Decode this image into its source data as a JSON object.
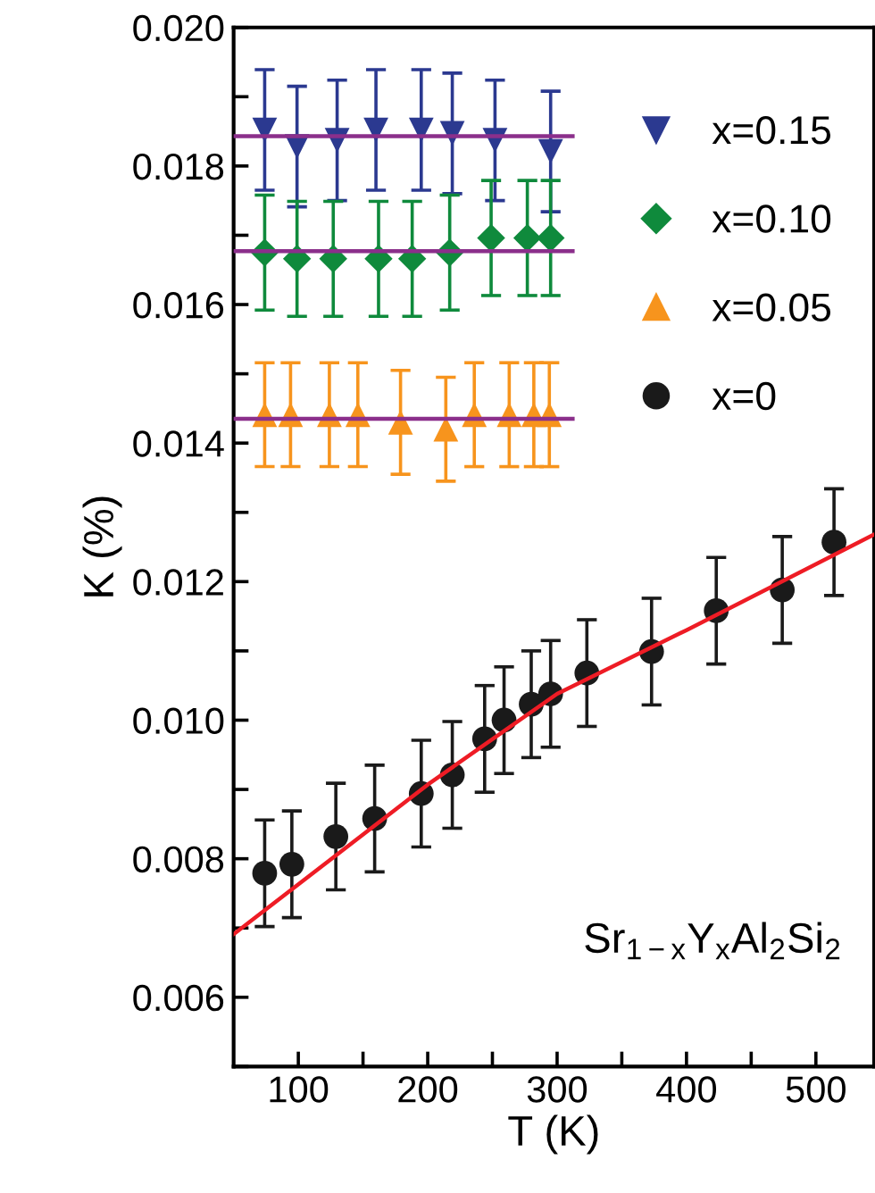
{
  "chart_data": {
    "type": "scatter",
    "xlabel": "T (K)",
    "ylabel": "K (%)",
    "xlim": [
      50,
      545
    ],
    "ylim": [
      0.005,
      0.02
    ],
    "xticks": [
      100,
      {
        "value": 150,
        "label": null
      },
      200,
      {
        "value": 250,
        "label": null
      },
      300,
      {
        "value": 350,
        "label": null
      },
      400,
      {
        "value": 450,
        "label": null
      },
      500
    ],
    "yticks": [
      {
        "value": 0.005,
        "label": null
      },
      0.006,
      {
        "value": 0.007,
        "label": null
      },
      0.008,
      {
        "value": 0.009,
        "label": null
      },
      {
        "value": 0.01,
        "label": "0.010"
      },
      {
        "value": 0.011,
        "label": null
      },
      0.012,
      {
        "value": 0.013,
        "label": null
      },
      0.014,
      {
        "value": 0.015,
        "label": null
      },
      0.016,
      {
        "value": 0.017,
        "label": null
      },
      0.018,
      {
        "value": 0.019,
        "label": null
      },
      {
        "value": 0.02,
        "label": "0.020"
      }
    ],
    "grid": false,
    "legend": "top right",
    "annotations": [
      "Sr$_{1−x}$Y$_{x}$Al$_{2}$Si$_{2}$"
    ],
    "series": [
      {
        "name": "x=0.15",
        "marker": "triangle_down",
        "color": "#2b3990",
        "x": [
          74,
          99,
          130,
          160,
          195,
          219,
          252,
          295
        ],
        "values": [
          0.01852,
          0.01828,
          0.01837,
          0.01852,
          0.01852,
          0.01847,
          0.01837,
          0.01821
        ],
        "errors": [
          0.00087,
          0.00087,
          0.00087,
          0.00087,
          0.00087,
          0.00087,
          0.00087,
          0.00087
        ]
      },
      {
        "name": "x=0.10",
        "marker": "diamond",
        "color": "#0f8a3c",
        "x": [
          74,
          99,
          127,
          162,
          188,
          217,
          249,
          277,
          295
        ],
        "values": [
          0.01675,
          0.01666,
          0.01666,
          0.01666,
          0.01666,
          0.01675,
          0.01696,
          0.01696,
          0.01696
        ],
        "errors": [
          0.00083,
          0.00083,
          0.00083,
          0.00083,
          0.00083,
          0.00083,
          0.00083,
          0.00083,
          0.00083
        ]
      },
      {
        "name": "x=0.05",
        "marker": "triangle",
        "color": "#f7941d",
        "x": [
          74,
          94,
          124,
          146,
          179,
          214,
          236,
          263,
          282,
          294
        ],
        "values": [
          0.01441,
          0.01441,
          0.01441,
          0.01441,
          0.0143,
          0.0142,
          0.01441,
          0.01441,
          0.01441,
          0.01441
        ],
        "errors": [
          0.00075,
          0.00075,
          0.00075,
          0.00075,
          0.00075,
          0.00075,
          0.00075,
          0.00075,
          0.00075,
          0.00075
        ]
      },
      {
        "name": "x=0",
        "marker": "circle",
        "color": "#1a1a1a",
        "x": [
          74,
          95,
          129,
          159,
          195,
          219,
          244,
          259,
          280,
          295,
          323,
          373,
          423,
          474,
          514
        ],
        "values": [
          0.00779,
          0.00792,
          0.00832,
          0.00858,
          0.00894,
          0.00921,
          0.00973,
          0.01,
          0.01023,
          0.01038,
          0.01068,
          0.01099,
          0.01158,
          0.01188,
          0.01257
        ],
        "errors": [
          0.00077,
          0.00077,
          0.00077,
          0.00077,
          0.00077,
          0.00077,
          0.00077,
          0.00077,
          0.00077,
          0.00077,
          0.00077,
          0.00077,
          0.00077,
          0.00077,
          0.00077
        ]
      },
      {
        "type": "line",
        "color": "#ee1c25",
        "x": [
          50,
          200,
          300,
          400,
          545
        ],
        "values": [
          0.00691,
          0.00907,
          0.01038,
          0.0113,
          0.01268
        ]
      },
      {
        "type": "line",
        "color": "#8b2f8b",
        "x": [
          50,
          312
        ],
        "values": [
          0.01843,
          0.01843
        ]
      },
      {
        "type": "line",
        "color": "#8b2f8b",
        "x": [
          50,
          312
        ],
        "values": [
          0.01677,
          0.01677
        ]
      },
      {
        "type": "line",
        "color": "#8b2f8b",
        "x": [
          50,
          312
        ],
        "values": [
          0.01435,
          0.01435
        ]
      }
    ]
  }
}
